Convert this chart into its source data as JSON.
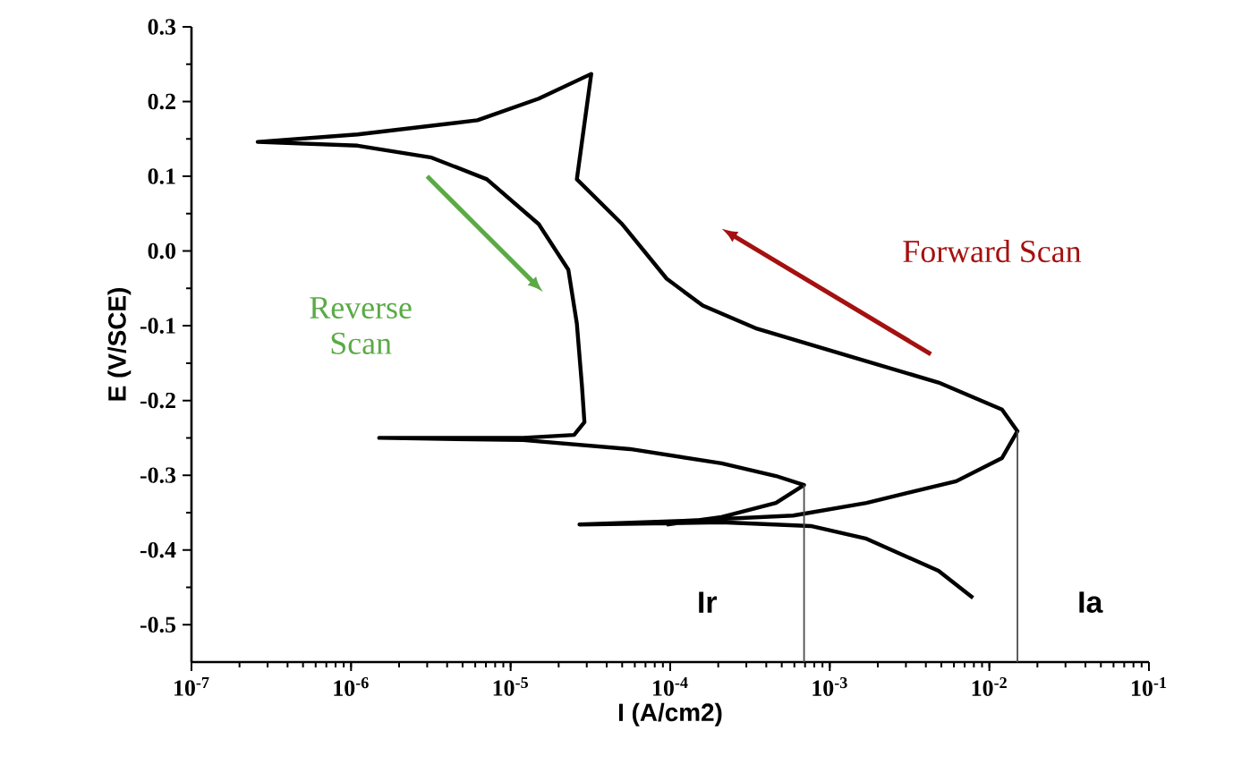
{
  "chart_data": {
    "type": "line",
    "xlabel": "I (A/cm2)",
    "ylabel": "E (V/SCE)",
    "log": "x",
    "grid": false,
    "marker": "none",
    "line_style": "solid",
    "xlim": [
      1e-07,
      0.1
    ],
    "ylim": [
      -0.55,
      0.3
    ],
    "xticks": [
      {
        "value": 1e-07,
        "label": "10$^{-7}$"
      },
      {
        "value": 1e-06,
        "label": "10$^{-6}$"
      },
      {
        "value": 1e-05,
        "label": "10$^{-5}$"
      },
      {
        "value": 0.0001,
        "label": "10$^{-4}$"
      },
      {
        "value": 0.001,
        "label": "10$^{-3}$"
      },
      {
        "value": 0.01,
        "label": "10$^{-2}$"
      },
      {
        "value": 0.1,
        "label": "10$^{-1}$"
      }
    ],
    "yticks": [
      0.3,
      0.2,
      0.1,
      {
        "value": 0,
        "label": "0.0"
      },
      -0.1,
      -0.2,
      -0.3,
      -0.4,
      -0.5
    ],
    "series": [
      {
        "color": "#000000",
        "x": [
          0.0079,
          0.0048,
          0.0017,
          0.00076,
          0.00021,
          2.7e-05,
          0.00012,
          0.00059,
          0.0017,
          0.0062,
          0.012,
          0.015,
          0.012,
          0.0048,
          0.0013,
          0.00035,
          0.00016,
          9.5e-05,
          5e-05,
          2.6e-05,
          3.2e-05,
          1.5e-05,
          6.2e-06,
          1.1e-06,
          2.6e-07,
          1.1e-06,
          3.2e-06,
          7.1e-06,
          1.5e-05,
          2.3e-05,
          2.6e-05,
          2.8e-05,
          2.9e-05,
          2.5e-05,
          1.2e-05,
          1.5e-06,
          1.2e-05,
          5.6e-05,
          0.00021,
          0.00046,
          0.00069,
          0.00046,
          0.00021,
          9.5e-05
        ],
        "values": [
          -0.464,
          -0.428,
          -0.385,
          -0.368,
          -0.363,
          -0.366,
          -0.361,
          -0.354,
          -0.337,
          -0.308,
          -0.277,
          -0.241,
          -0.212,
          -0.176,
          -0.14,
          -0.104,
          -0.073,
          -0.037,
          0.036,
          0.096,
          0.237,
          0.204,
          0.175,
          0.156,
          0.146,
          0.141,
          0.125,
          0.096,
          0.036,
          -0.025,
          -0.097,
          -0.181,
          -0.229,
          -0.246,
          -0.25,
          -0.25,
          -0.253,
          -0.265,
          -0.284,
          -0.301,
          -0.313,
          -0.337,
          -0.356,
          -0.366
        ]
      },
      {
        "color": "#4c4c4c",
        "x": [
          0.00069,
          0.00069
        ],
        "values": [
          -0.55,
          -0.313
        ]
      },
      {
        "color": "#4c4c4c",
        "x": [
          0.015,
          0.015
        ],
        "values": [
          -0.55,
          -0.241
        ]
      }
    ],
    "annotations": [
      "Ir",
      "Ia",
      "Forward Scan",
      "Reverse Scan"
    ]
  }
}
